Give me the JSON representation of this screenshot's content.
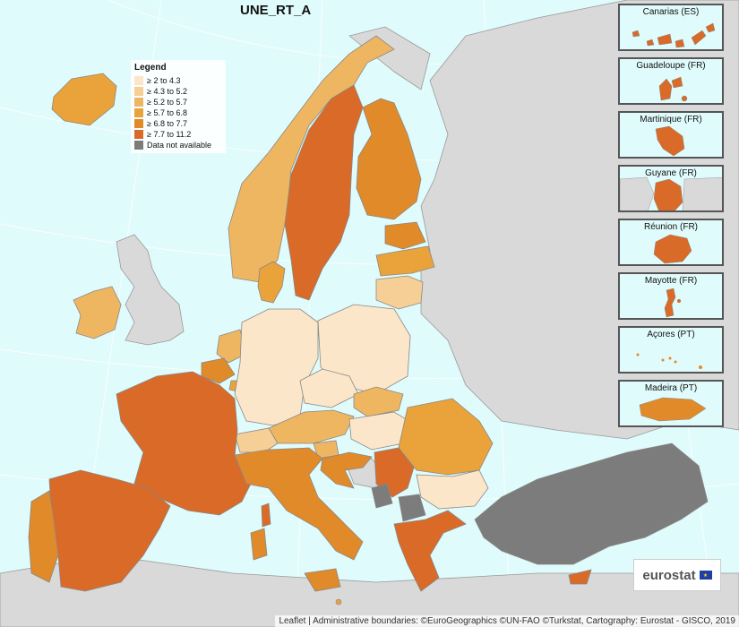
{
  "map": {
    "title": "UNE_RT_A",
    "legend": {
      "title": "Legend",
      "items": [
        {
          "label": "≥ 2 to 4.3",
          "color": "#fce6c9"
        },
        {
          "label": "≥ 4.3 to 5.2",
          "color": "#f5cf96"
        },
        {
          "label": "≥ 5.2 to 5.7",
          "color": "#efb662"
        },
        {
          "label": "≥ 5.7 to 6.8",
          "color": "#e9a33a"
        },
        {
          "label": "≥ 6.8 to 7.7",
          "color": "#e08a2a"
        },
        {
          "label": "≥ 7.7 to 11.2",
          "color": "#d96a28"
        },
        {
          "label": "Data not available",
          "color": "#7c7c7c"
        }
      ]
    },
    "insets": [
      {
        "label": "Canarias (ES)",
        "class_color": "#d96a28"
      },
      {
        "label": "Guadeloupe (FR)",
        "class_color": "#d96a28"
      },
      {
        "label": "Martinique (FR)",
        "class_color": "#d96a28"
      },
      {
        "label": "Guyane (FR)",
        "class_color": "#d96a28"
      },
      {
        "label": "Réunion (FR)",
        "class_color": "#d96a28"
      },
      {
        "label": "Mayotte (FR)",
        "class_color": "#d96a28"
      },
      {
        "label": "Açores (PT)",
        "class_color": "#e08a2a"
      },
      {
        "label": "Madeira (PT)",
        "class_color": "#e08a2a"
      }
    ],
    "logo_text": "eurostat",
    "attribution": "Leaflet | Administrative boundaries: ©EuroGeographics ©UN-FAO ©Turkstat, Cartography: Eurostat - GISCO, 2019",
    "colors": {
      "sea": "#e0fbfb",
      "non_eu": "#d9d9d9",
      "no_data": "#7c7c7c",
      "border": "#888888"
    }
  }
}
